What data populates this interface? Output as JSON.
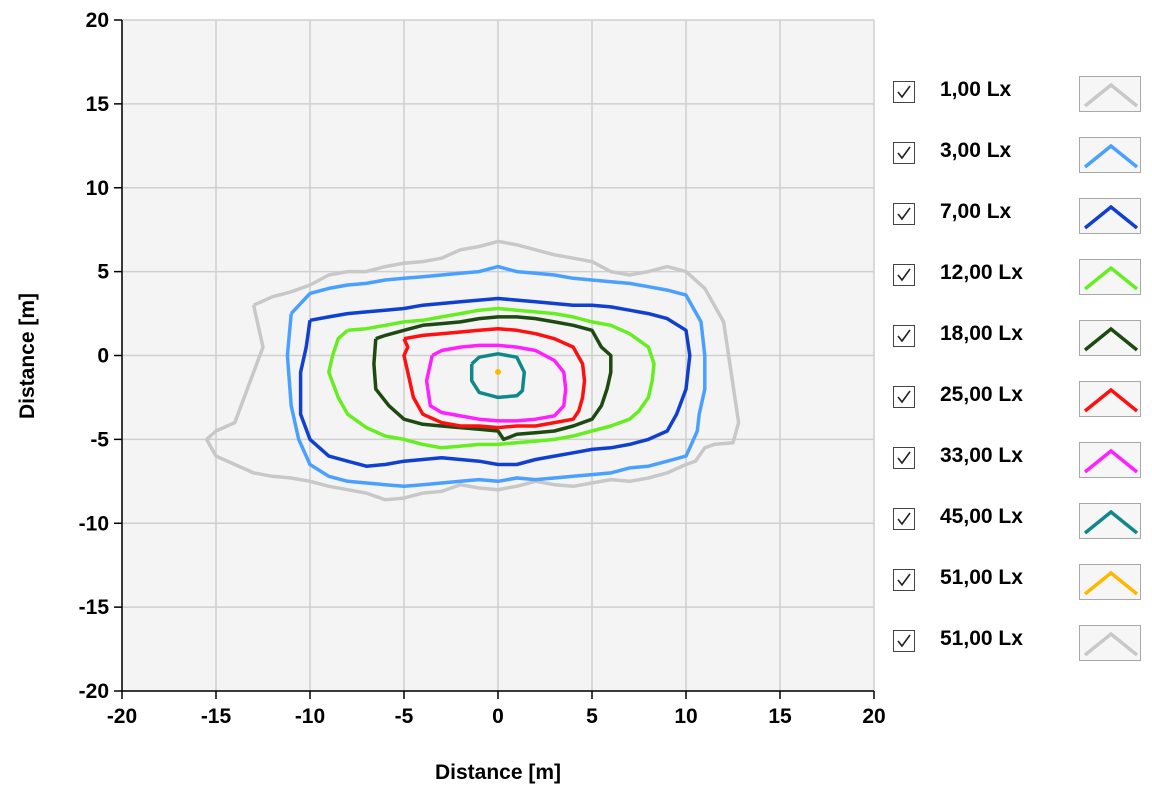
{
  "chart_data": {
    "type": "line",
    "title": "",
    "xlabel": "Distance [m]",
    "ylabel": "Distance [m]",
    "xlim": [
      -20,
      20
    ],
    "ylim": [
      -20,
      20
    ],
    "x_ticks": [
      "-20",
      "-15",
      "-10",
      "-5",
      "0",
      "5",
      "10",
      "15",
      "20"
    ],
    "y_ticks": [
      "20",
      "15",
      "10",
      "5",
      "0",
      "-5",
      "-10",
      "-15",
      "-20"
    ],
    "grid": true,
    "legend_position": "right",
    "series": [
      {
        "name": "1,00 Lx",
        "color": "#c8c8c8",
        "checked": true,
        "x": [
          -13,
          -12,
          -11,
          -10,
          -9,
          -8,
          -7,
          -6,
          -5,
          -4,
          -3,
          -2,
          -1,
          0,
          1,
          2,
          3,
          4,
          5,
          6,
          7,
          8,
          9,
          10,
          11,
          12,
          12.8,
          12.5,
          11.5,
          11,
          10.5,
          10,
          9,
          8,
          7,
          6,
          5,
          4,
          3,
          2,
          1,
          0,
          -1,
          -2,
          -3,
          -4,
          -5,
          -6,
          -7,
          -8,
          -9,
          -10,
          -11,
          -12,
          -13,
          -14,
          -15,
          -15.5,
          -15,
          -14,
          -13.5,
          -13,
          -12.5,
          -13
        ],
        "y": [
          3,
          3.5,
          3.8,
          4.2,
          4.8,
          5,
          5,
          5.3,
          5.5,
          5.6,
          5.8,
          6.3,
          6.5,
          6.8,
          6.6,
          6.3,
          6,
          5.8,
          5.6,
          5,
          4.8,
          5,
          5.3,
          5,
          4,
          2,
          -4,
          -5.2,
          -5.3,
          -5.5,
          -6.3,
          -6.5,
          -7,
          -7.3,
          -7.5,
          -7.4,
          -7.6,
          -7.8,
          -7.7,
          -7.5,
          -7.8,
          -8,
          -7.9,
          -7.7,
          -8.1,
          -8.2,
          -8.5,
          -8.6,
          -8.2,
          -8,
          -7.8,
          -7.5,
          -7.3,
          -7.2,
          -7,
          -6.5,
          -6,
          -5,
          -4.5,
          -4,
          -2.5,
          -1,
          0.5,
          3
        ]
      },
      {
        "name": "3,00 Lx",
        "color": "#4aa0ff",
        "checked": true,
        "x": [
          -11,
          -10,
          -9,
          -8,
          -7,
          -6,
          -5,
          -4,
          -3,
          -2,
          -1,
          0,
          1,
          2,
          3,
          4,
          5,
          6,
          7,
          8,
          9,
          10,
          10.8,
          11,
          11,
          10.7,
          10.6,
          10.2,
          10,
          9,
          8,
          7,
          6,
          5,
          4,
          3,
          2,
          1,
          0,
          -1,
          -2,
          -3,
          -4,
          -5,
          -6,
          -7,
          -8,
          -9,
          -10,
          -10.6,
          -11,
          -11.2,
          -11
        ],
        "y": [
          2.5,
          3.7,
          4,
          4.2,
          4.3,
          4.5,
          4.6,
          4.7,
          4.8,
          4.9,
          5,
          5.3,
          5,
          4.9,
          4.8,
          4.6,
          4.5,
          4.4,
          4.3,
          4.1,
          3.9,
          3.6,
          2,
          0,
          -2,
          -3.5,
          -4.5,
          -5.5,
          -6,
          -6.3,
          -6.6,
          -6.7,
          -7,
          -7.1,
          -7.2,
          -7.3,
          -7.4,
          -7.3,
          -7.5,
          -7.4,
          -7.5,
          -7.6,
          -7.7,
          -7.8,
          -7.7,
          -7.6,
          -7.5,
          -7.2,
          -6.5,
          -5,
          -3,
          0,
          2.5
        ]
      },
      {
        "name": "7,00 Lx",
        "color": "#1040d0",
        "checked": true,
        "x": [
          -10,
          -9,
          -8,
          -7,
          -6,
          -5,
          -4,
          -3,
          -2,
          -1,
          0,
          1,
          2,
          3,
          4,
          5,
          6,
          7,
          8,
          9,
          10,
          10.2,
          10,
          9.5,
          9,
          8,
          7,
          6,
          5,
          4,
          3,
          2,
          1,
          0,
          -1,
          -2,
          -3,
          -4,
          -5,
          -6,
          -7,
          -8,
          -9,
          -10,
          -10.5,
          -10.5,
          -10.2,
          -10
        ],
        "y": [
          2.1,
          2.3,
          2.5,
          2.6,
          2.7,
          2.8,
          3,
          3.1,
          3.2,
          3.3,
          3.4,
          3.3,
          3.2,
          3.1,
          3,
          3,
          2.9,
          2.7,
          2.5,
          2.2,
          1.5,
          0,
          -2,
          -3.5,
          -4.5,
          -5,
          -5.3,
          -5.5,
          -5.6,
          -5.8,
          -6,
          -6.2,
          -6.5,
          -6.5,
          -6.3,
          -6.2,
          -6.1,
          -6.2,
          -6.3,
          -6.5,
          -6.6,
          -6.3,
          -6,
          -5,
          -3.5,
          -1,
          0.5,
          2.1
        ]
      },
      {
        "name": "12,00 Lx",
        "color": "#66ee22",
        "checked": true,
        "x": [
          -8,
          -7,
          -6,
          -5,
          -4,
          -3,
          -2,
          -1,
          0,
          1,
          2,
          3,
          4,
          5,
          6,
          7,
          8,
          8.3,
          8.2,
          8,
          7.5,
          7,
          6,
          5,
          4,
          3,
          2,
          1,
          0,
          -1,
          -2,
          -3,
          -4,
          -5,
          -6,
          -7,
          -8,
          -8.5,
          -9,
          -8.8,
          -8.5,
          -8
        ],
        "y": [
          1.5,
          1.6,
          1.8,
          2,
          2.1,
          2.3,
          2.5,
          2.7,
          2.8,
          2.7,
          2.6,
          2.5,
          2.3,
          2,
          1.8,
          1.3,
          0.5,
          -0.5,
          -1.5,
          -2.5,
          -3.3,
          -3.8,
          -4.2,
          -4.5,
          -4.8,
          -5,
          -5.1,
          -5.2,
          -5.3,
          -5.3,
          -5.4,
          -5.5,
          -5.3,
          -5,
          -4.8,
          -4.3,
          -3.5,
          -2.5,
          -1,
          0,
          1,
          1.5
        ]
      },
      {
        "name": "18,00 Lx",
        "color": "#1c4a10",
        "checked": true,
        "x": [
          -6.5,
          -6,
          -5,
          -4,
          -3,
          -2,
          -1,
          0,
          1,
          2,
          3,
          4,
          5,
          5.5,
          6,
          6,
          5.8,
          5.5,
          5,
          4,
          3,
          2,
          1,
          0.3,
          0,
          -1,
          -2,
          -3,
          -4,
          -5,
          -5.8,
          -6.5,
          -6.6,
          -6.5
        ],
        "y": [
          1,
          1.2,
          1.5,
          1.8,
          1.9,
          2,
          2.2,
          2.3,
          2.3,
          2.2,
          2,
          1.8,
          1.5,
          0.5,
          0,
          -1,
          -2,
          -3,
          -3.8,
          -4.2,
          -4.5,
          -4.6,
          -4.7,
          -5,
          -4.5,
          -4.4,
          -4.3,
          -4.2,
          -4.1,
          -3.8,
          -3,
          -2,
          -0.5,
          1
        ]
      },
      {
        "name": "25,00 Lx",
        "color": "#ff1010",
        "checked": true,
        "x": [
          -5,
          -4,
          -3,
          -2,
          -1,
          0,
          1,
          2,
          3,
          4,
          4.5,
          4.6,
          4.5,
          4.3,
          4,
          3,
          2,
          1,
          0,
          -1,
          -2,
          -3,
          -4,
          -4.5,
          -4.8,
          -5,
          -4.8,
          -5
        ],
        "y": [
          1,
          1.2,
          1.3,
          1.4,
          1.5,
          1.6,
          1.5,
          1.3,
          1,
          0.5,
          -0.5,
          -1.5,
          -2.5,
          -3.3,
          -3.8,
          -4,
          -4.2,
          -4.2,
          -4.3,
          -4.2,
          -4.2,
          -4,
          -3.5,
          -2.5,
          -1,
          0,
          0.5,
          1
        ]
      },
      {
        "name": "33,00 Lx",
        "color": "#ff20ff",
        "checked": true,
        "x": [
          -3.5,
          -3,
          -2,
          -1,
          0,
          1,
          2,
          3,
          3.5,
          3.6,
          3.5,
          3,
          2,
          1,
          0,
          -1,
          -2,
          -3,
          -3.6,
          -3.8,
          -3.5
        ],
        "y": [
          0,
          0.3,
          0.5,
          0.6,
          0.6,
          0.5,
          0.3,
          -0.3,
          -1,
          -2,
          -3,
          -3.6,
          -3.8,
          -3.9,
          -3.9,
          -3.8,
          -3.6,
          -3.4,
          -3,
          -1.5,
          0
        ]
      },
      {
        "name": "45,00 Lx",
        "color": "#108888",
        "checked": true,
        "x": [
          -1.4,
          -1,
          0,
          1,
          1.4,
          1.3,
          1,
          0,
          -1,
          -1.4,
          -1.4
        ],
        "y": [
          -0.5,
          -0.1,
          0.1,
          -0.1,
          -1,
          -2.1,
          -2.4,
          -2.5,
          -2.2,
          -1.5,
          -0.5
        ]
      },
      {
        "name": "51,00 Lx",
        "color": "#ffb800",
        "checked": true,
        "x": [
          0,
          0.1,
          0,
          -0.1,
          0
        ],
        "y": [
          -0.9,
          -1,
          -1.1,
          -1,
          -0.9
        ]
      },
      {
        "name": "51,00 Lx",
        "color": "#c8c8c8",
        "checked": true,
        "x": [],
        "y": []
      }
    ]
  }
}
